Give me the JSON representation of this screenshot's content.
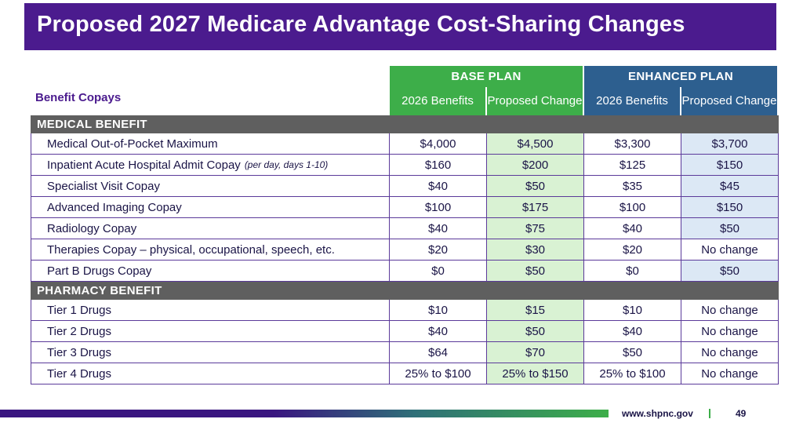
{
  "title": "Proposed 2027 Medicare Advantage Cost-Sharing Changes",
  "table": {
    "row_header_label": "Benefit Copays",
    "plans": [
      {
        "name": "BASE PLAN",
        "columns": [
          "2026 Benefits",
          "Proposed Change"
        ]
      },
      {
        "name": "ENHANCED PLAN",
        "columns": [
          "2026 Benefits",
          "Proposed Change"
        ]
      }
    ],
    "sections": [
      {
        "name": "MEDICAL BENEFIT",
        "rows": [
          {
            "label": "Medical Out-of-Pocket Maximum",
            "note": "",
            "values": [
              "$4,000",
              "$4,500",
              "$3,300",
              "$3,700"
            ]
          },
          {
            "label": "Inpatient Acute Hospital Admit Copay",
            "note": "(per day, days 1-10)",
            "values": [
              "$160",
              "$200",
              "$125",
              "$150"
            ]
          },
          {
            "label": "Specialist Visit Copay",
            "note": "",
            "values": [
              "$40",
              "$50",
              "$35",
              "$45"
            ]
          },
          {
            "label": "Advanced Imaging Copay",
            "note": "",
            "values": [
              "$100",
              "$175",
              "$100",
              "$150"
            ]
          },
          {
            "label": "Radiology Copay",
            "note": "",
            "values": [
              "$40",
              "$75",
              "$40",
              "$50"
            ]
          },
          {
            "label": "Therapies Copay – physical, occupational, speech, etc.",
            "note": "",
            "values": [
              "$20",
              "$30",
              "$20",
              "No change"
            ]
          },
          {
            "label": "Part B Drugs Copay",
            "note": "",
            "values": [
              "$0",
              "$50",
              "$0",
              "$50"
            ]
          }
        ]
      },
      {
        "name": "PHARMACY BENEFIT",
        "rows": [
          {
            "label": "Tier 1 Drugs",
            "note": "",
            "values": [
              "$10",
              "$15",
              "$10",
              "No change"
            ]
          },
          {
            "label": "Tier 2 Drugs",
            "note": "",
            "values": [
              "$40",
              "$50",
              "$40",
              "No change"
            ]
          },
          {
            "label": "Tier 3 Drugs",
            "note": "",
            "values": [
              "$64",
              "$70",
              "$50",
              "No change"
            ]
          },
          {
            "label": "Tier 4 Drugs",
            "note": "",
            "values": [
              "25% to $100",
              "25% to $150",
              "25% to $100",
              "No change"
            ]
          }
        ]
      }
    ]
  },
  "footer": {
    "url": "www.shpnc.gov",
    "separator": "|",
    "page_number": "49"
  },
  "colors": {
    "title_bar": "#4b1b8e",
    "base_plan": "#3dae49",
    "enhanced_plan": "#2d5f8f",
    "section_bar": "#5f5f5f",
    "base_highlight": "#d9f2d3",
    "enhanced_highlight": "#dce8f5"
  }
}
